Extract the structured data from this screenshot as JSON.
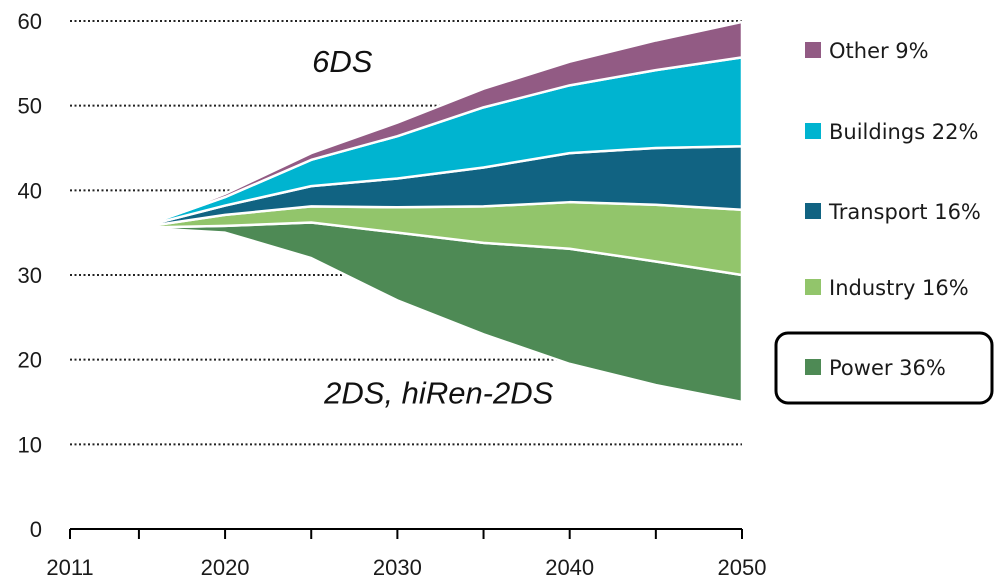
{
  "chart_data": {
    "type": "area",
    "title": "",
    "xlabel": "",
    "ylabel": "",
    "x": [
      2015,
      2020,
      2025,
      2030,
      2035,
      2040,
      2045,
      2050
    ],
    "xlim": [
      2011,
      2050
    ],
    "ylim": [
      0,
      60
    ],
    "x_ticks": [
      {
        "value": 2011,
        "label": "2011"
      },
      {
        "value": 2020,
        "label": "2020"
      },
      {
        "value": 2030,
        "label": "2030"
      },
      {
        "value": 2040,
        "label": "2040"
      },
      {
        "value": 2050,
        "label": "2050"
      }
    ],
    "y_ticks": [
      {
        "value": 0,
        "label": "0"
      },
      {
        "value": 10,
        "label": "10"
      },
      {
        "value": 20,
        "label": "20"
      },
      {
        "value": 30,
        "label": "30"
      },
      {
        "value": 40,
        "label": "40"
      },
      {
        "value": 50,
        "label": "50"
      },
      {
        "value": 60,
        "label": "60"
      }
    ],
    "gridlines_y": [
      10,
      20,
      30,
      40,
      50,
      60
    ],
    "grid": "horizontal dotted",
    "baseline": [
      35.6,
      35.0,
      32.0,
      27.0,
      23.0,
      19.5,
      17.0,
      15.0
    ],
    "series": [
      {
        "name": "Power 36%",
        "color": "#4e8a55",
        "values": [
          0.0,
          0.8,
          4.2,
          8.0,
          10.8,
          13.6,
          14.6,
          15.0
        ]
      },
      {
        "name": "Industry 16%",
        "color": "#92c56b",
        "values": [
          0.0,
          1.3,
          1.9,
          3.0,
          4.3,
          5.5,
          6.7,
          7.7
        ]
      },
      {
        "name": "Transport 16%",
        "color": "#116382",
        "values": [
          0.0,
          1.1,
          2.4,
          3.4,
          4.6,
          5.8,
          6.7,
          7.5
        ]
      },
      {
        "name": "Buildings 22%",
        "color": "#00b4d0",
        "values": [
          0.0,
          1.0,
          3.1,
          5.0,
          7.1,
          8.0,
          9.2,
          10.5
        ]
      },
      {
        "name": "Other 9%",
        "color": "#925b84",
        "values": [
          0.0,
          0.4,
          0.8,
          1.6,
          2.2,
          2.8,
          3.5,
          4.2
        ]
      }
    ],
    "annotations": [
      {
        "text": "6DS",
        "x": 2026.8,
        "y": 54
      },
      {
        "text": "2DS, hiRen-2DS",
        "x": 2032.4,
        "y": 14.8
      }
    ],
    "legend": {
      "placement": "right",
      "order": [
        "Other 9%",
        "Buildings 22%",
        "Transport 16%",
        "Industry 16%",
        "Power 36%"
      ],
      "highlighted": "Power 36%"
    }
  }
}
